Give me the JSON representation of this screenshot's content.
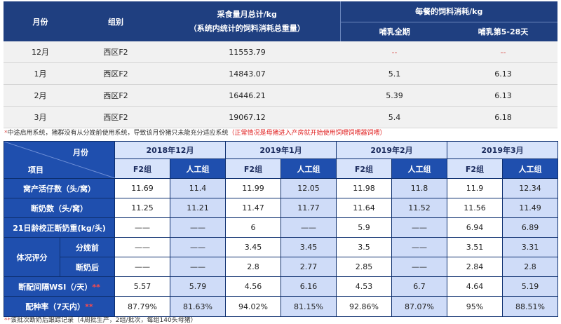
{
  "top_table": {
    "headers": {
      "month": "月份",
      "group": "组别",
      "total_line1": "采食量月总计/kg",
      "total_line2": "（系统内统计的饲料消耗总重量）",
      "per_meal": "每餐的饲料消耗/kg",
      "whole_period": "哺乳全期",
      "day5_28": "哺乳第5-28天"
    },
    "rows": [
      {
        "month": "12月",
        "group": "西区F2",
        "total": "11553.79",
        "whole": "--",
        "d528": "--"
      },
      {
        "month": "1月",
        "group": "西区F2",
        "total": "14843.07",
        "whole": "5.1",
        "d528": "6.13"
      },
      {
        "month": "2月",
        "group": "西区F2",
        "total": "16446.21",
        "whole": "5.39",
        "d528": "6.13"
      },
      {
        "month": "3月",
        "group": "西区F2",
        "total": "19067.12",
        "whole": "5.4",
        "d528": "6.18"
      }
    ]
  },
  "note1": {
    "asterisk": "*",
    "text": "中途启用系统，猪群没有从分娩前使用系统，导致该月份猪只未能充分适应系统",
    "red_text": "（正常情况是母猪进入产房就开始使用饲喂饲喂器饲喂）"
  },
  "bottom_table": {
    "corner_month": "月份",
    "corner_item": "项目",
    "months": [
      "2018年12月",
      "2019年1月",
      "2019年2月",
      "2019年3月"
    ],
    "groups": [
      "F2组",
      "人工组",
      "F2组",
      "人工组",
      "F2组",
      "人工组",
      "F2组",
      "人工组"
    ],
    "rows": [
      {
        "label": "窝产活仔数（头/窝）",
        "stars": "",
        "values": [
          "11.69",
          "11.4",
          "11.99",
          "12.05",
          "11.98",
          "11.8",
          "11.9",
          "12.34"
        ]
      },
      {
        "label": "断奶数（头/窝）",
        "stars": "",
        "values": [
          "11.25",
          "11.21",
          "11.47",
          "11.77",
          "11.64",
          "11.52",
          "11.56",
          "11.49"
        ]
      },
      {
        "label": "21日龄校正断奶重(kg/头)",
        "stars": "",
        "values": [
          "——",
          "——",
          "6",
          "——",
          "5.9",
          "——",
          "6.94",
          "6.89"
        ]
      }
    ],
    "condition": {
      "label": "体况评分",
      "sub": [
        {
          "label": "分娩前",
          "values": [
            "——",
            "——",
            "3.45",
            "3.45",
            "3.5",
            "——",
            "3.51",
            "3.31"
          ]
        },
        {
          "label": "断奶后",
          "values": [
            "——",
            "——",
            "2.8",
            "2.77",
            "2.85",
            "——",
            "2.84",
            "2.8"
          ]
        }
      ]
    },
    "rows2": [
      {
        "label": "断配间隔WSI（/天）",
        "stars": "**",
        "values": [
          "5.57",
          "5.79",
          "4.56",
          "6.16",
          "4.53",
          "6.7",
          "4.64",
          "5.19"
        ]
      },
      {
        "label": "配种率（7天内）",
        "stars": "**",
        "values": [
          "87.79%",
          "81.63%",
          "94.02%",
          "81.15%",
          "92.86%",
          "87.07%",
          "95%",
          "88.51%"
        ]
      }
    ]
  },
  "note2": {
    "asterisk": "**",
    "text": "该批次断奶后跟踪记录（4周批生产，2组/批次，每组140头母猪）"
  }
}
